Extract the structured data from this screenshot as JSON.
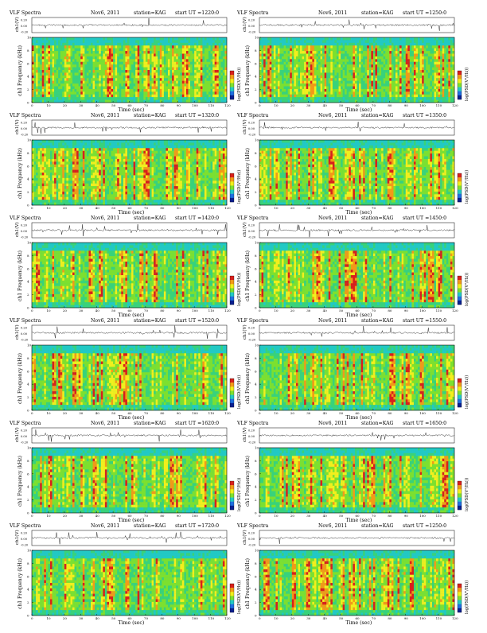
{
  "page": {
    "common": {
      "title": "VLF Spectra",
      "date": "Nov6, 2011",
      "station": "station=KAG",
      "start_prefix": "start  UT =",
      "x_label": "Time (sec)",
      "waveform_label": "ch1(V)",
      "spec_label": "ch1 Frequency (kHz)",
      "colorbar_label": "log(PSD(V²/Hz))",
      "x_ticks": [
        0,
        10,
        20,
        30,
        40,
        50,
        60,
        70,
        80,
        90,
        100,
        110,
        120
      ],
      "waveform_ticks": [
        "0.20",
        "0.00",
        "-0.20"
      ],
      "freq_ticks": [
        "10",
        "8",
        "6",
        "4",
        "2",
        "0"
      ]
    }
  },
  "chart_data": [
    {
      "type": "heatmap",
      "panel": "1",
      "title": "VLF Spectra   Nov6, 2011   station=KAG   start UT =1220:0",
      "start_ut": "1220:0",
      "x_range": [
        0,
        120
      ],
      "y_range_khz": [
        0,
        10
      ],
      "waveform_range_v": [
        -0.2,
        0.2
      ],
      "colormap": "jet"
    },
    {
      "type": "heatmap",
      "panel": "2",
      "title": "VLF Spectra   Nov6, 2011   station=KAG   start UT =1250:0",
      "start_ut": "1250:0",
      "x_range": [
        0,
        120
      ],
      "y_range_khz": [
        0,
        10
      ],
      "waveform_range_v": [
        -0.2,
        0.2
      ],
      "colormap": "jet"
    },
    {
      "type": "heatmap",
      "panel": "3",
      "title": "VLF Spectra   Nov6, 2011   station=KAG   start UT =1320:0",
      "start_ut": "1320:0",
      "x_range": [
        0,
        120
      ],
      "y_range_khz": [
        0,
        10
      ],
      "waveform_range_v": [
        -0.2,
        0.2
      ],
      "colormap": "jet"
    },
    {
      "type": "heatmap",
      "panel": "4",
      "title": "VLF Spectra   Nov6, 2011   station=KAG   start UT =1350:0",
      "start_ut": "1350:0",
      "x_range": [
        0,
        120
      ],
      "y_range_khz": [
        0,
        10
      ],
      "waveform_range_v": [
        -0.2,
        0.2
      ],
      "colormap": "jet"
    },
    {
      "type": "heatmap",
      "panel": "5",
      "title": "VLF Spectra   Nov6, 2011   station=KAG   start UT =1420:0",
      "start_ut": "1420:0",
      "x_range": [
        0,
        120
      ],
      "y_range_khz": [
        0,
        10
      ],
      "waveform_range_v": [
        -0.2,
        0.2
      ],
      "colormap": "jet"
    },
    {
      "type": "heatmap",
      "panel": "6",
      "title": "VLF Spectra   Nov6, 2011   station=KAG   start UT =1450:0",
      "start_ut": "1450:0",
      "x_range": [
        0,
        120
      ],
      "y_range_khz": [
        0,
        10
      ],
      "waveform_range_v": [
        -0.2,
        0.2
      ],
      "colormap": "jet"
    },
    {
      "type": "heatmap",
      "panel": "7",
      "title": "VLF Spectra   Nov6, 2011   station=KAG   start UT =1520:0",
      "start_ut": "1520:0",
      "x_range": [
        0,
        120
      ],
      "y_range_khz": [
        0,
        10
      ],
      "waveform_range_v": [
        -0.2,
        0.2
      ],
      "colormap": "jet"
    },
    {
      "type": "heatmap",
      "panel": "8",
      "title": "VLF Spectra   Nov6, 2011   station=KAG   start UT =1550:0",
      "start_ut": "1550:0",
      "x_range": [
        0,
        120
      ],
      "y_range_khz": [
        0,
        10
      ],
      "waveform_range_v": [
        -0.2,
        0.2
      ],
      "colormap": "jet"
    },
    {
      "type": "heatmap",
      "panel": "9",
      "title": "VLF Spectra   Nov6, 2011   station=KAG   start UT =1620:0",
      "start_ut": "1620:0",
      "x_range": [
        0,
        120
      ],
      "y_range_khz": [
        0,
        10
      ],
      "waveform_range_v": [
        -0.2,
        0.2
      ],
      "colormap": "jet"
    },
    {
      "type": "heatmap",
      "panel": "10",
      "title": "VLF Spectra   Nov6, 2011   station=KAG   start UT =1650:0",
      "start_ut": "1650:0",
      "x_range": [
        0,
        120
      ],
      "y_range_khz": [
        0,
        10
      ],
      "waveform_range_v": [
        -0.2,
        0.2
      ],
      "colormap": "jet"
    },
    {
      "type": "heatmap",
      "panel": "11",
      "title": "VLF Spectra   Nov6, 2011   station=KAG   start UT =1720:0",
      "start_ut": "1720:0",
      "x_range": [
        0,
        120
      ],
      "y_range_khz": [
        0,
        10
      ],
      "waveform_range_v": [
        -0.2,
        0.2
      ],
      "colormap": "jet"
    },
    {
      "type": "heatmap",
      "panel": "12",
      "title": "VLF Spectra   Nov6, 2011   station=KAG   start UT =1250:0",
      "start_ut": "1250:0",
      "x_range": [
        0,
        120
      ],
      "y_range_khz": [
        0,
        10
      ],
      "waveform_range_v": [
        -0.2,
        0.2
      ],
      "colormap": "jet"
    }
  ]
}
